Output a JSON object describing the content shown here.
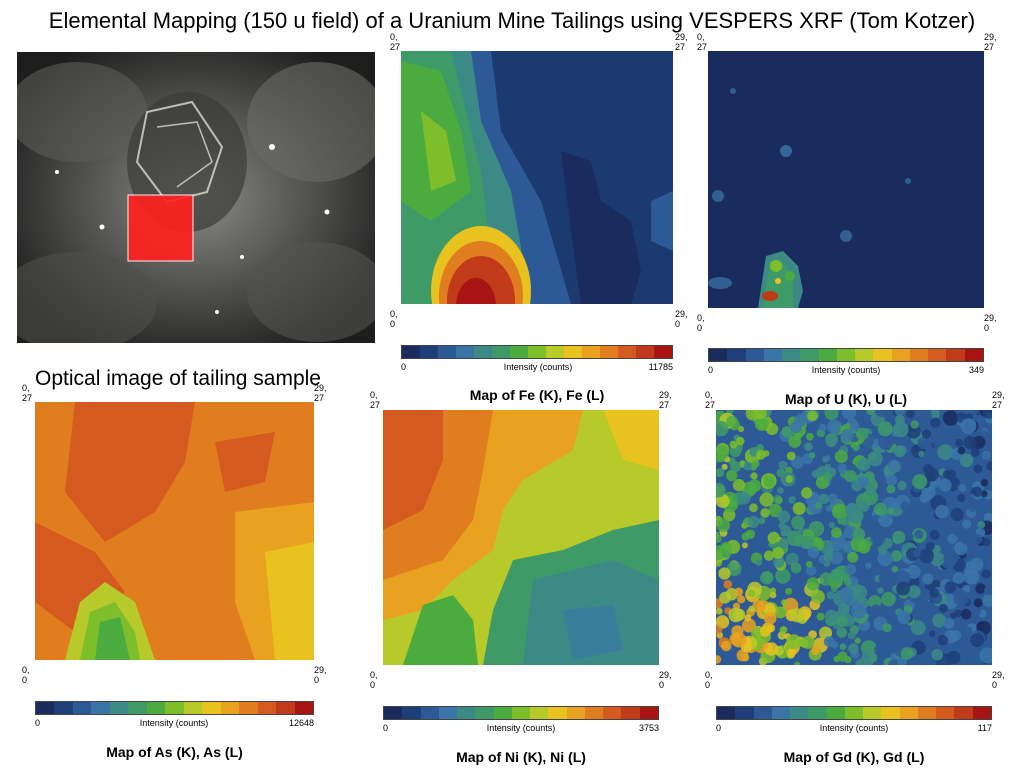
{
  "slide": {
    "title": "Elemental Mapping (150 u field) of a  Uranium Mine Tailings using VESPERS XRF (Tom Kotzer)",
    "optical_caption": "Optical image of tailing  sample"
  },
  "colors": {
    "scale": [
      "#1a2c5e",
      "#1f3f7a",
      "#2d5a96",
      "#3b75a8",
      "#3b8a86",
      "#3e9a66",
      "#4cab3f",
      "#7ebe2a",
      "#b8c92a",
      "#e8c21f",
      "#e8a21f",
      "#e07d1f",
      "#d45a1f",
      "#c13a1a",
      "#a81313"
    ],
    "selection_box": "#ff2020"
  },
  "colorbar": {
    "label": "Intensity (counts)",
    "min": "0"
  },
  "corners": {
    "top_left": [
      "0,",
      "27"
    ],
    "top_right": [
      "29,",
      "27"
    ],
    "bottom_left": [
      "0,",
      "0"
    ],
    "bottom_right": [
      "29,",
      "0"
    ]
  },
  "maps": [
    {
      "id": "fe",
      "title": "Map of Fe (K), Fe (L)",
      "max": "11785"
    },
    {
      "id": "u",
      "title": "Map of U (K), U (L)",
      "max": "349"
    },
    {
      "id": "as",
      "title": "Map of As (K), As (L)",
      "max": "12648"
    },
    {
      "id": "ni",
      "title": "Map of Ni (K), Ni (L)",
      "max": "3753"
    },
    {
      "id": "gd",
      "title": "Map of Gd (K), Gd (L)",
      "max": "117"
    }
  ]
}
